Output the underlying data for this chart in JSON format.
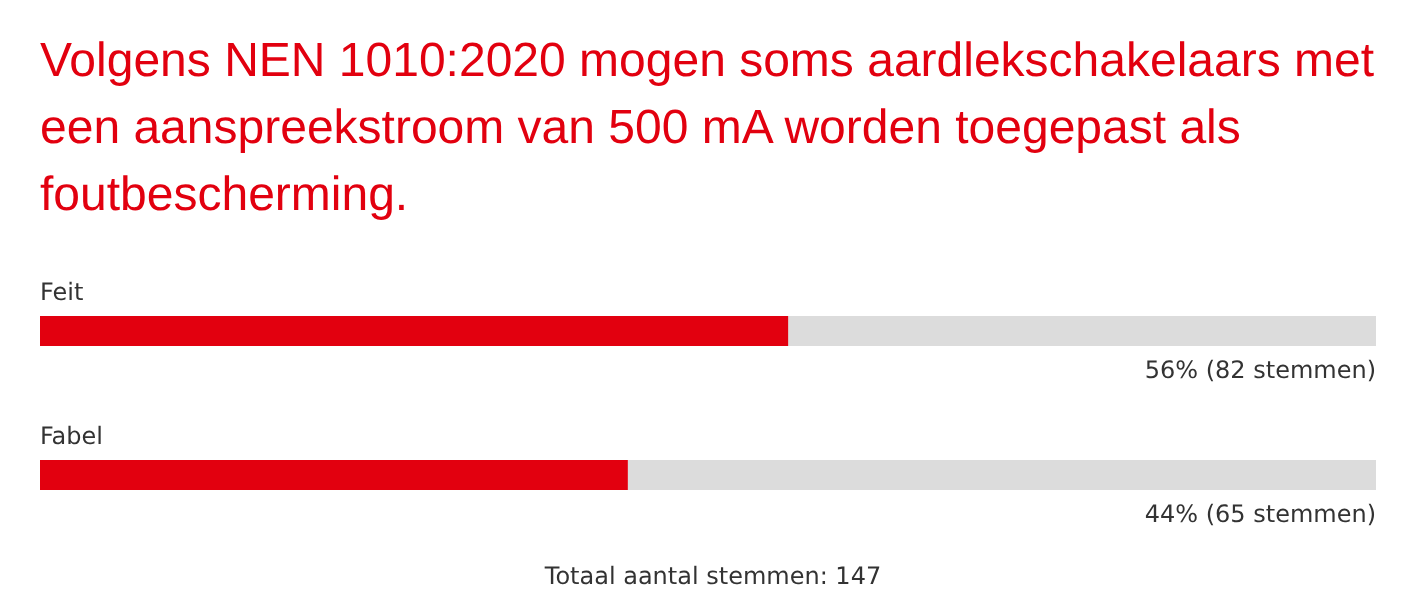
{
  "chart_data": {
    "type": "bar",
    "orientation": "horizontal",
    "title": "Volgens NEN 1010:2020 mogen soms aardlekschakelaars met een aanspreekstroom van 500 mA worden toegepast als foutbescherming.",
    "categories": [
      "Feit",
      "Fabel"
    ],
    "values": [
      56,
      44
    ],
    "value_labels": [
      "56% (82 stemmen)",
      "44% (65 stemmen)"
    ],
    "color": "#e2000f",
    "xlim": [
      0,
      100
    ],
    "annotations": [
      "Totaal aantal stemmen: 147"
    ]
  }
}
